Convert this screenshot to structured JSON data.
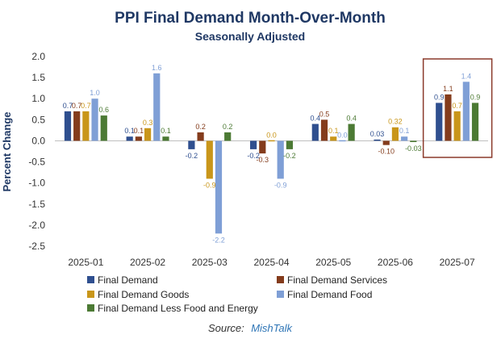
{
  "chart_data": {
    "type": "bar",
    "title": "PPI Final Demand Month-Over-Month",
    "subtitle": "Seasonally Adjusted",
    "ylabel": "Percent Change",
    "xlabel": "",
    "ylim": [
      -2.5,
      2.0
    ],
    "yticks": [
      "2.0",
      "1.5",
      "1.0",
      "0.5",
      "0.0",
      "-0.5",
      "-1.0",
      "-1.5",
      "-2.0",
      "-2.5"
    ],
    "ytick_values": [
      2.0,
      1.5,
      1.0,
      0.5,
      0.0,
      -0.5,
      -1.0,
      -1.5,
      -2.0,
      -2.5
    ],
    "categories": [
      "2025-01",
      "2025-02",
      "2025-03",
      "2025-04",
      "2025-05",
      "2025-06",
      "2025-07"
    ],
    "series": [
      {
        "name": "Final Demand",
        "color": "#2f4f8f",
        "values": [
          0.7,
          0.1,
          -0.2,
          -0.2,
          0.4,
          0.03,
          0.9
        ],
        "labels": [
          "0.7",
          "0.1",
          "-0.2",
          "-0.2",
          "0.4",
          "0.03",
          "0.9"
        ]
      },
      {
        "name": "Final Demand Services",
        "color": "#843c1c",
        "values": [
          0.7,
          0.1,
          0.2,
          -0.3,
          0.5,
          -0.1,
          1.1
        ],
        "labels": [
          "0.7",
          "0.1",
          "0.2",
          "-0.3",
          "0.5",
          "-0.10",
          "1.1"
        ]
      },
      {
        "name": "Final Demand Goods",
        "color": "#c9961a",
        "values": [
          0.7,
          0.3,
          -0.9,
          0.0,
          0.1,
          0.32,
          0.7
        ],
        "labels": [
          "0.7",
          "0.3",
          "-0.9",
          "0.0",
          "0.1",
          "0.32",
          "0.7"
        ]
      },
      {
        "name": "Final Demand Food",
        "color": "#7f9fd6",
        "values": [
          1.0,
          1.6,
          -2.2,
          -0.9,
          0.0,
          0.1,
          1.4
        ],
        "labels": [
          "1.0",
          "1.6",
          "-2.2",
          "-0.9",
          "0.0",
          "0.1",
          "1.4"
        ]
      },
      {
        "name": "Final Demand Less Food and Energy",
        "color": "#4c7a34",
        "values": [
          0.6,
          0.1,
          0.2,
          -0.2,
          0.4,
          -0.03,
          0.9
        ],
        "labels": [
          "0.6",
          "0.1",
          "0.2",
          "-0.2",
          "0.4",
          "-0.03",
          "0.9"
        ]
      }
    ],
    "legend_position": "bottom",
    "grid": false,
    "highlight_category": "2025-07",
    "highlight_color": "#8b3a2b"
  },
  "source": {
    "prefix": "Source:",
    "name": "MishTalk"
  }
}
